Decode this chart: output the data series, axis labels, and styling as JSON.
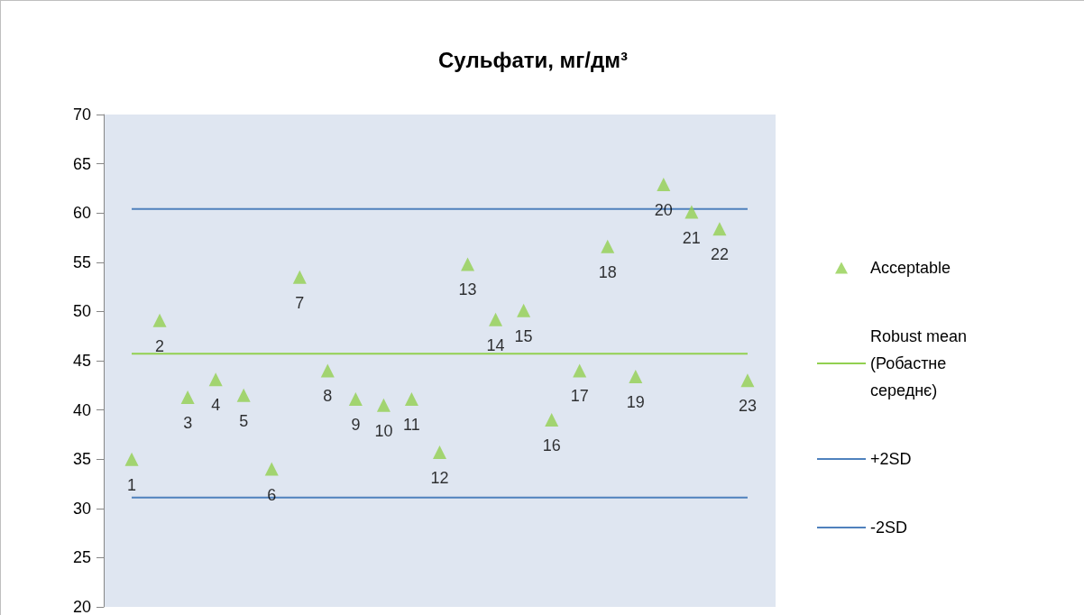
{
  "chart_data": {
    "type": "scatter",
    "title": "Сульфати, мг/дм³",
    "categories": [
      "1",
      "2",
      "3",
      "4",
      "5",
      "6",
      "7",
      "8",
      "9",
      "10",
      "11",
      "12",
      "13",
      "14",
      "15",
      "16",
      "17",
      "18",
      "19",
      "20",
      "21",
      "22",
      "23"
    ],
    "series": [
      {
        "name": "Acceptable",
        "type": "scatter",
        "color": "#92d050",
        "marker": "triangle",
        "values": [
          35.0,
          49.1,
          41.3,
          43.1,
          41.5,
          34.0,
          53.5,
          44.0,
          41.1,
          40.5,
          41.1,
          35.7,
          54.8,
          49.2,
          50.1,
          39.0,
          44.0,
          56.6,
          43.4,
          62.9,
          60.1,
          58.4,
          43.0
        ]
      },
      {
        "name": "Robust mean (Робастне середнє)",
        "type": "line",
        "color": "#92d050",
        "marker": "none",
        "values": [
          45.7,
          45.7,
          45.7,
          45.7,
          45.7,
          45.7,
          45.7,
          45.7,
          45.7,
          45.7,
          45.7,
          45.7,
          45.7,
          45.7,
          45.7,
          45.7,
          45.7,
          45.7,
          45.7,
          45.7,
          45.7,
          45.7,
          45.7
        ]
      },
      {
        "name": "+2SD",
        "type": "line",
        "color": "#4f81bd",
        "marker": "none",
        "values": [
          60.4,
          60.4,
          60.4,
          60.4,
          60.4,
          60.4,
          60.4,
          60.4,
          60.4,
          60.4,
          60.4,
          60.4,
          60.4,
          60.4,
          60.4,
          60.4,
          60.4,
          60.4,
          60.4,
          60.4,
          60.4,
          60.4,
          60.4
        ]
      },
      {
        "name": "-2SD",
        "type": "line",
        "color": "#4f81bd",
        "marker": "none",
        "values": [
          31.1,
          31.1,
          31.1,
          31.1,
          31.1,
          31.1,
          31.1,
          31.1,
          31.1,
          31.1,
          31.1,
          31.1,
          31.1,
          31.1,
          31.1,
          31.1,
          31.1,
          31.1,
          31.1,
          31.1,
          31.1,
          31.1,
          31.1
        ]
      }
    ],
    "ylim": [
      20,
      70
    ],
    "yticks": [
      20,
      25,
      30,
      35,
      40,
      45,
      50,
      55,
      60,
      65,
      70
    ],
    "grid": false,
    "legend": "right",
    "tick_labels": "y",
    "line_style": "solid"
  }
}
